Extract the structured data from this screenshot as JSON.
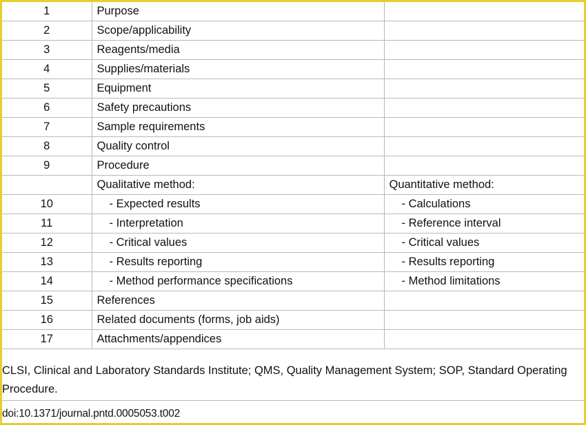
{
  "rows": [
    {
      "num": "1",
      "a": "Purpose",
      "b": "",
      "sub": false
    },
    {
      "num": "2",
      "a": "Scope/applicability",
      "b": "",
      "sub": false
    },
    {
      "num": "3",
      "a": "Reagents/media",
      "b": "",
      "sub": false
    },
    {
      "num": "4",
      "a": "Supplies/materials",
      "b": "",
      "sub": false
    },
    {
      "num": "5",
      "a": "Equipment",
      "b": "",
      "sub": false
    },
    {
      "num": "6",
      "a": "Safety precautions",
      "b": "",
      "sub": false
    },
    {
      "num": "7",
      "a": "Sample requirements",
      "b": "",
      "sub": false
    },
    {
      "num": "8",
      "a": "Quality control",
      "b": "",
      "sub": false
    },
    {
      "num": "9",
      "a": "Procedure",
      "b": "",
      "sub": false
    },
    {
      "num": "",
      "a": "Qualitative method:",
      "b": "Quantitative method:",
      "sub": false
    },
    {
      "num": "10",
      "a": "- Expected results",
      "b": "- Calculations",
      "sub": true
    },
    {
      "num": "11",
      "a": "- Interpretation",
      "b": "- Reference interval",
      "sub": true
    },
    {
      "num": "12",
      "a": "- Critical values",
      "b": "- Critical values",
      "sub": true
    },
    {
      "num": "13",
      "a": "- Results reporting",
      "b": "- Results reporting",
      "sub": true
    },
    {
      "num": "14",
      "a": "- Method performance specifications",
      "b": "- Method limitations",
      "sub": true
    },
    {
      "num": "15",
      "a": "References",
      "b": "",
      "sub": false
    },
    {
      "num": "16",
      "a": "Related documents (forms, job aids)",
      "b": "",
      "sub": false
    },
    {
      "num": "17",
      "a": "Attachments/appendices",
      "b": "",
      "sub": false
    }
  ],
  "footnote": "CLSI, Clinical and Laboratory Standards Institute; QMS, Quality Management System; SOP, Standard Operating Procedure.",
  "doi": "doi:10.1371/journal.pntd.0005053.t002",
  "colors": {
    "frame": "#e6cf2e",
    "grid": "#b8b8b8",
    "text": "#111111"
  }
}
